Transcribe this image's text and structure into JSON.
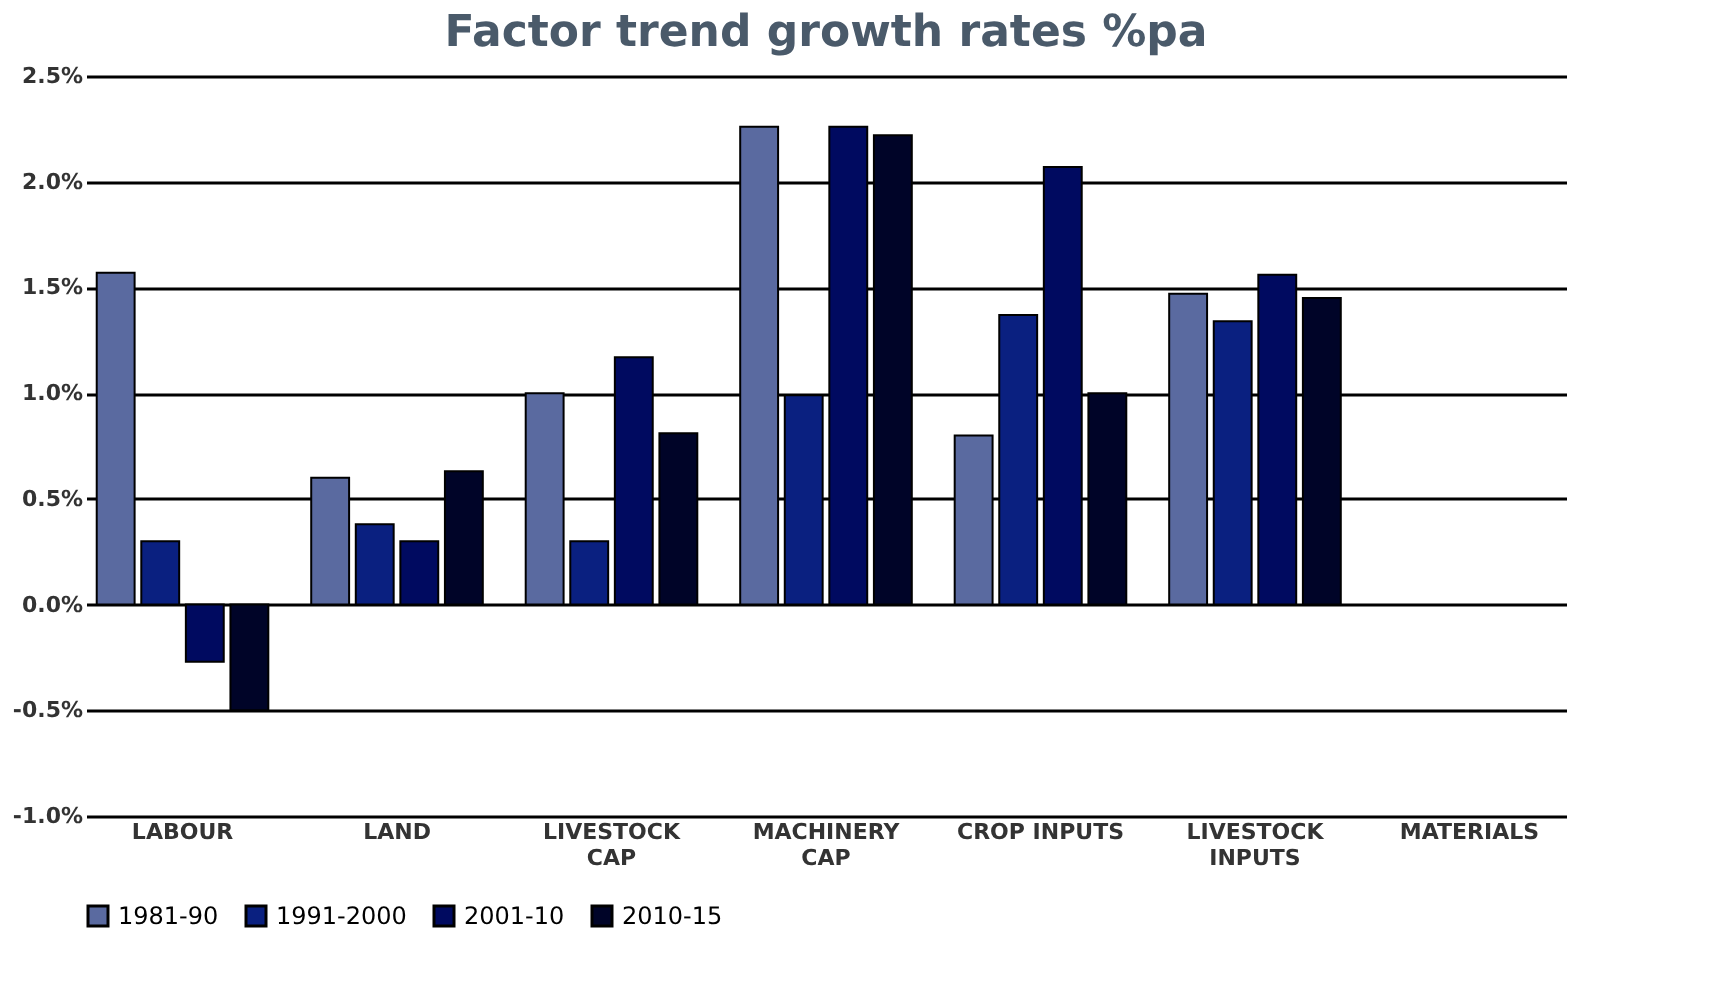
{
  "chart_data": {
    "type": "bar",
    "title": "Factor trend growth rates %pa",
    "categories": [
      "LABOUR",
      "LAND",
      "LIVESTOCK\nCAP",
      "MACHINERY\nCAP",
      "CROP INPUTS",
      "LIVESTOCK\nINPUTS",
      "MATERIALS"
    ],
    "series": [
      {
        "name": "1981-90",
        "color": "#5a6aa0",
        "values": [
          1.57,
          0.6,
          1.0,
          2.26,
          0.8,
          1.47,
          null
        ]
      },
      {
        "name": "1991-2000",
        "color": "#0a2080",
        "values": [
          0.3,
          0.38,
          0.3,
          0.99,
          1.37,
          1.34,
          null
        ]
      },
      {
        "name": "2001-10",
        "color": "#000a60",
        "values": [
          -0.27,
          0.3,
          1.17,
          2.26,
          2.07,
          1.56,
          null
        ]
      },
      {
        "name": "2010-15",
        "color": "#000428",
        "values": [
          -0.5,
          0.63,
          0.81,
          2.22,
          1.0,
          1.45,
          null
        ]
      }
    ],
    "ylim": [
      -1.0,
      2.5
    ],
    "yticks": [
      {
        "value": -1.0,
        "label": "-1.0%"
      },
      {
        "value": -0.5,
        "label": "-0.5%"
      },
      {
        "value": 0,
        "label": "0.0%"
      },
      {
        "value": 0.5,
        "label": "0.5%"
      },
      {
        "value": 1.0,
        "label": "1.0%"
      },
      {
        "value": 1.5,
        "label": "1.5%"
      },
      {
        "value": 2.0,
        "label": "2.0%"
      },
      {
        "value": 2.5,
        "label": "2.5%"
      }
    ],
    "grid": "y",
    "legend": "bottom"
  }
}
